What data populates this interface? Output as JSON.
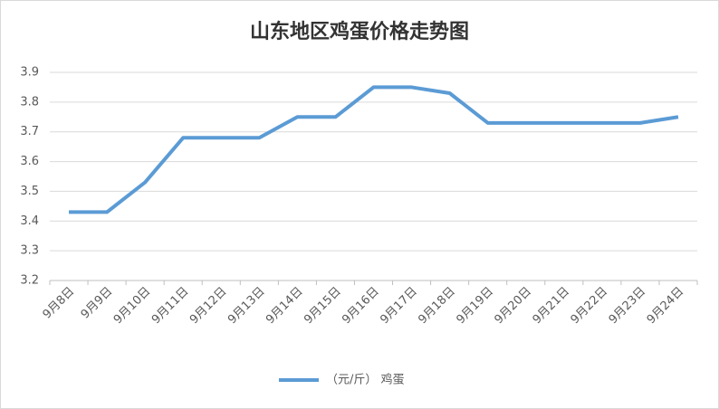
{
  "chart_data": {
    "type": "line",
    "title": "山东地区鸡蛋价格走势图",
    "categories": [
      "9月8日",
      "9月9日",
      "9月10日",
      "9月11日",
      "9月12日",
      "9月13日",
      "9月14日",
      "9月15日",
      "9月16日",
      "9月17日",
      "9月18日",
      "9月19日",
      "9月20日",
      "9月21日",
      "9月22日",
      "9月23日",
      "9月24日"
    ],
    "series": [
      {
        "name": "（元/斤） 鸡蛋",
        "color": "#5b9bd5",
        "values": [
          3.43,
          3.43,
          3.53,
          3.68,
          3.68,
          3.68,
          3.75,
          3.75,
          3.85,
          3.85,
          3.83,
          3.73,
          3.73,
          3.73,
          3.73,
          3.73,
          3.75
        ]
      }
    ],
    "ylim": [
      3.2,
      3.9
    ],
    "yticks": [
      3.2,
      3.3,
      3.4,
      3.5,
      3.6,
      3.7,
      3.8,
      3.9
    ],
    "grid": true,
    "legend": "bottom"
  }
}
